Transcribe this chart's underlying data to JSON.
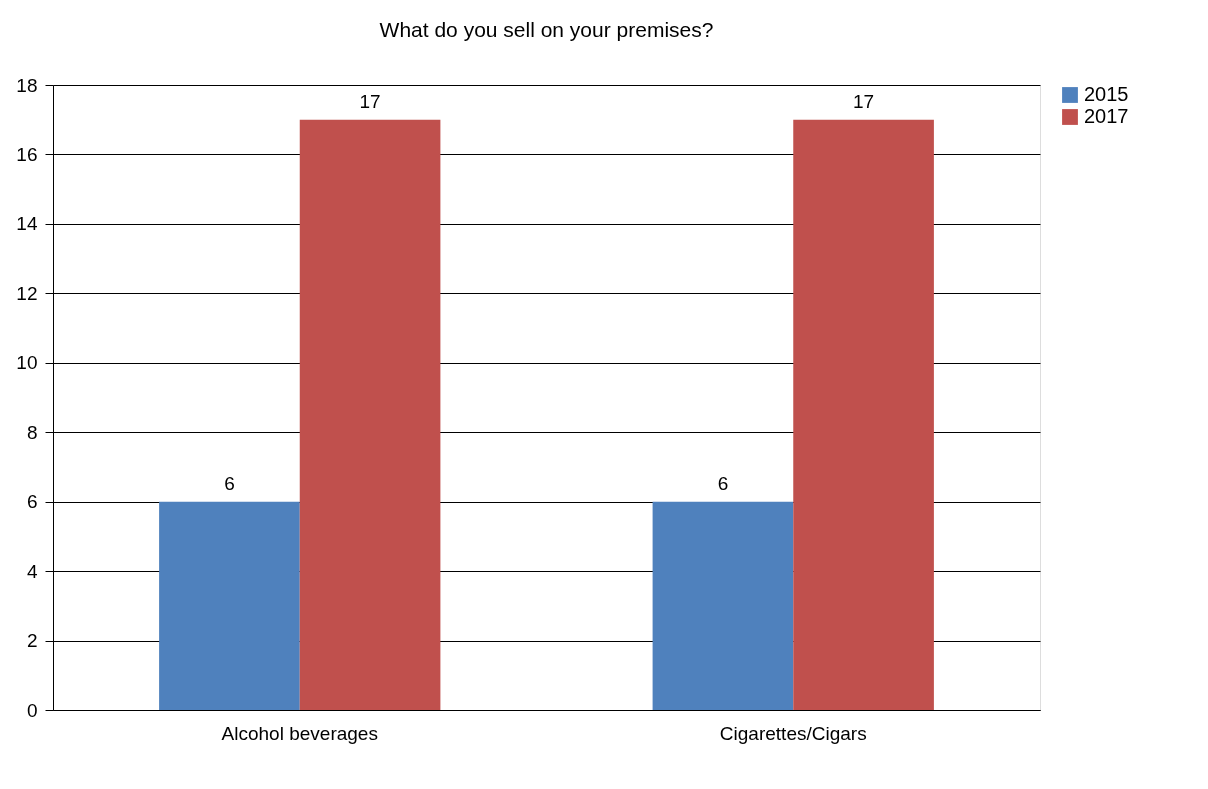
{
  "chart_data": {
    "type": "bar",
    "title": "What do you sell on your premises?",
    "categories": [
      "Alcohol beverages",
      "Cigarettes/Cigars"
    ],
    "series": [
      {
        "name": "2015",
        "color": "#4f81bd",
        "values": [
          6,
          6
        ]
      },
      {
        "name": "2017",
        "color": "#c0504d",
        "values": [
          17,
          17
        ]
      }
    ],
    "ylim": [
      0,
      18
    ],
    "yticks": [
      0,
      2,
      4,
      6,
      8,
      10,
      12,
      14,
      16,
      18
    ],
    "grid": "y",
    "legend": "right",
    "data_labels": true
  }
}
